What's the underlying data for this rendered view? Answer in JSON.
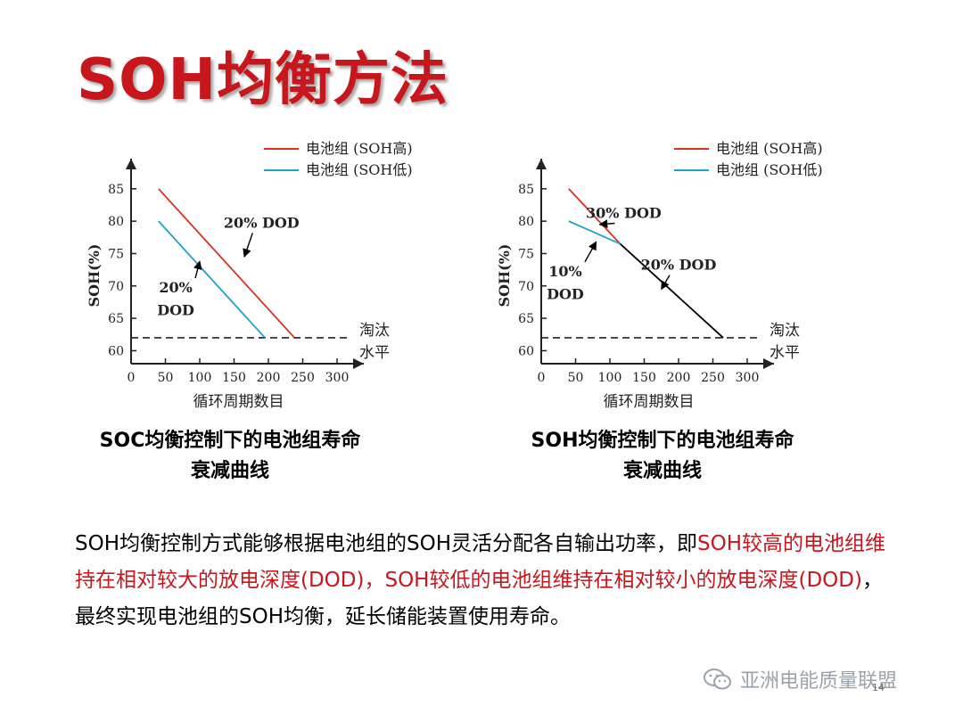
{
  "title": "SOH均衡方法",
  "page_number": "14",
  "watermark": "亚洲电能质量联盟",
  "charts": {
    "left": {
      "caption_line1": "SOC均衡控制下的电池组寿命",
      "caption_line2": "衰减曲线"
    },
    "right": {
      "caption_line1": "SOH均衡控制下的电池组寿命",
      "caption_line2": "衰减曲线"
    }
  },
  "paragraph": [
    {
      "text": "SOH均衡控制方式能够根据电池组的SOH灵活分配各自输出功率，即",
      "highlight": false
    },
    {
      "text": "SOH较高的电池组维持在相对较大的放电深度(DOD)，SOH较低的电池组维持在相对较小的放电深度(DOD)",
      "highlight": true
    },
    {
      "text": "，最终实现电池组的SOH均衡，延长储能装置使用寿命。",
      "highlight": false
    }
  ],
  "colors": {
    "title": "#c8161d",
    "high_series": "#d9301f",
    "low_series": "#1fa3c9",
    "combined_series": "#000000"
  },
  "chart_data": [
    {
      "type": "line",
      "xlabel": "循环周期数目",
      "ylabel": "SOH(%)",
      "xlim": [
        0,
        300
      ],
      "ylim": [
        58,
        88
      ],
      "xticks": [
        0,
        50,
        100,
        150,
        200,
        250,
        300
      ],
      "yticks": [
        60,
        65,
        70,
        75,
        80,
        85
      ],
      "threshold": {
        "y": 62,
        "label_line1": "淘汰",
        "label_line2": "水平"
      },
      "series": [
        {
          "name": "电池组 (SOH高)",
          "color": "#d9301f",
          "x": [
            40,
            238
          ],
          "y": [
            85,
            62
          ]
        },
        {
          "name": "电池组 (SOH低)",
          "color": "#1fa3c9",
          "x": [
            40,
            195
          ],
          "y": [
            80,
            62
          ]
        }
      ],
      "annotations": [
        {
          "text": "20% DOD",
          "x": 190,
          "y": 79,
          "arrow_to": [
            165,
            74.5
          ]
        },
        {
          "text": "20%",
          "x": 65,
          "y": 69,
          "arrow_to": [
            100,
            73.8
          ]
        },
        {
          "text": "DOD",
          "x": 65,
          "y": 65.5
        }
      ]
    },
    {
      "type": "line",
      "xlabel": "循环周期数目",
      "ylabel": "SOH(%)",
      "xlim": [
        0,
        300
      ],
      "ylim": [
        58,
        88
      ],
      "xticks": [
        0,
        50,
        100,
        150,
        200,
        250,
        300
      ],
      "yticks": [
        60,
        65,
        70,
        75,
        80,
        85
      ],
      "threshold": {
        "y": 62,
        "label_line1": "淘汰",
        "label_line2": "水平"
      },
      "series": [
        {
          "name": "电池组 (SOH高)",
          "color": "#d9301f",
          "x": [
            40,
            115
          ],
          "y": [
            85,
            76.5
          ]
        },
        {
          "name": "电池组 (SOH低)",
          "color": "#1fa3c9",
          "x": [
            40,
            115
          ],
          "y": [
            80,
            76.5
          ]
        },
        {
          "name": "",
          "color": "#000000",
          "x": [
            115,
            265
          ],
          "y": [
            76.5,
            62
          ]
        }
      ],
      "annotations": [
        {
          "text": "30% DOD",
          "x": 120,
          "y": 80.5,
          "arrow_to": [
            85,
            79.5
          ]
        },
        {
          "text": "10%",
          "x": 35,
          "y": 71.5,
          "arrow_to": [
            80,
            76.8
          ]
        },
        {
          "text": "DOD",
          "x": 35,
          "y": 68
        },
        {
          "text": "20% DOD",
          "x": 200,
          "y": 72.5,
          "arrow_to": [
            175,
            69.5
          ]
        }
      ]
    }
  ]
}
